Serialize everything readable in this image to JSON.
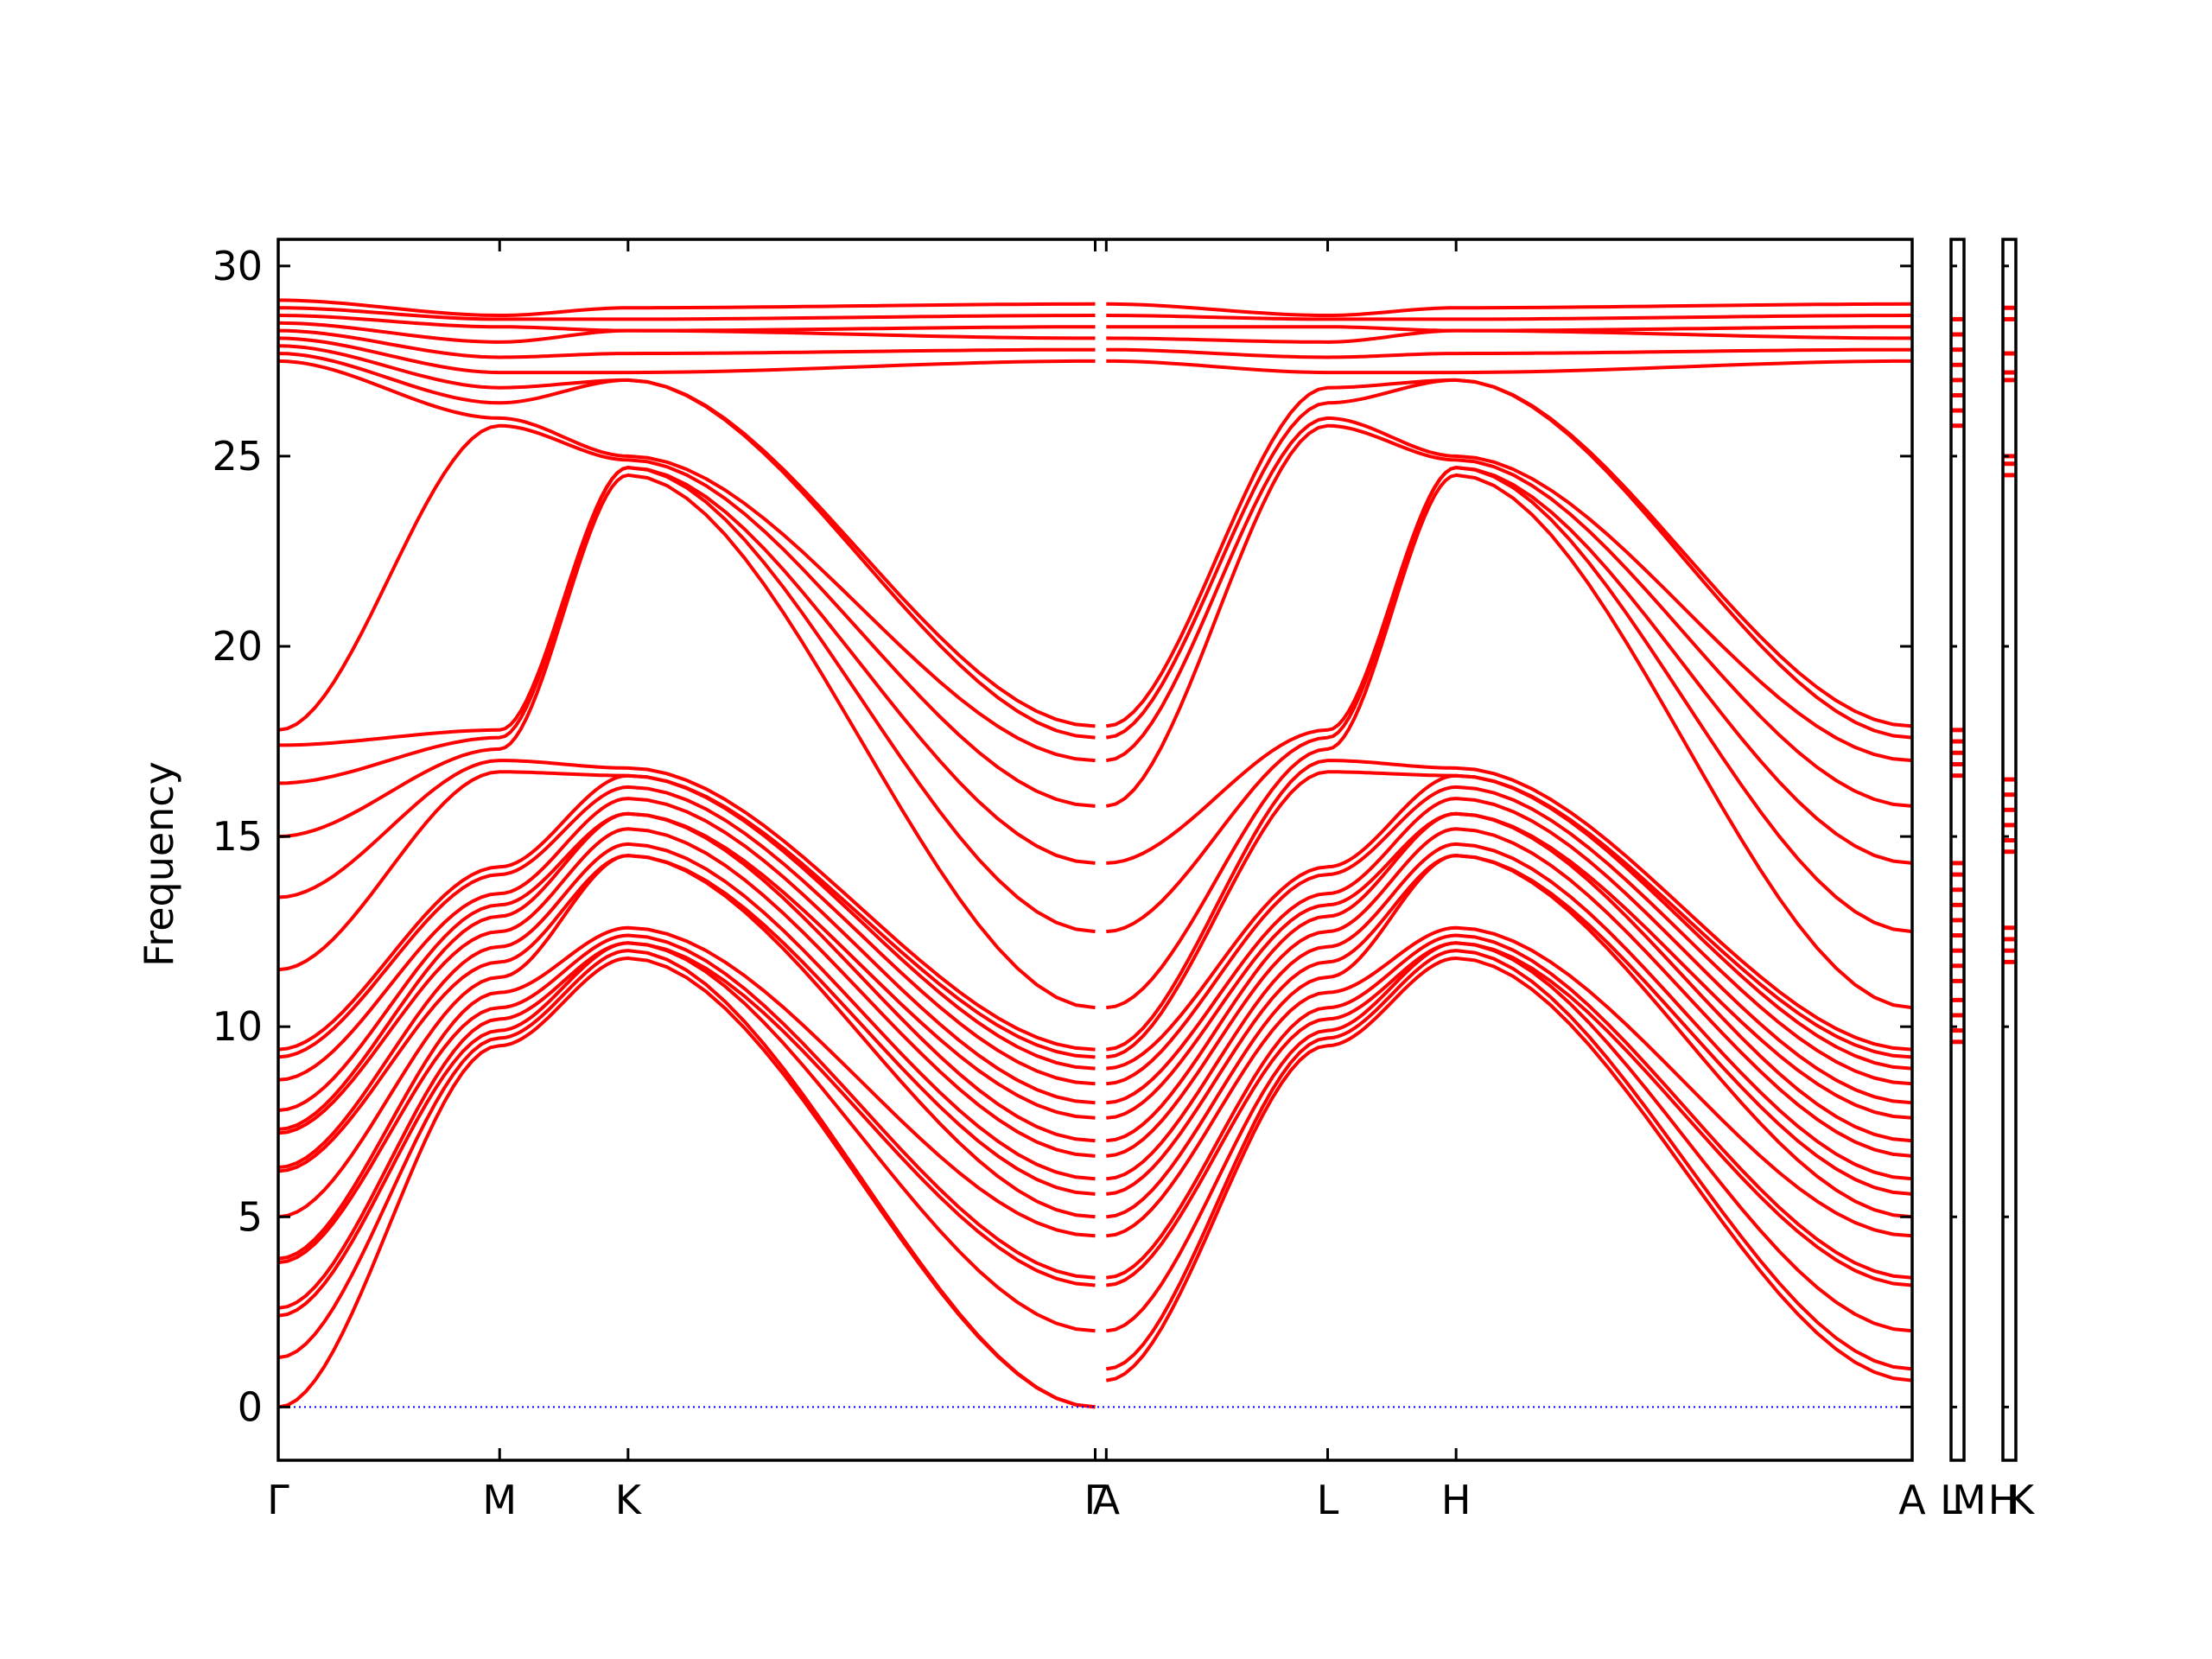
{
  "chart_data": {
    "type": "line",
    "title": "",
    "xlabel": "",
    "ylabel": "Frequency",
    "ylim": [
      -1.4,
      30.7
    ],
    "yticks": [
      0,
      5,
      10,
      15,
      20,
      25,
      30
    ],
    "grid": false,
    "legend": "none",
    "colors": {
      "bands": "#ff0000",
      "zero_line": "#0000ff",
      "axes": "#000000"
    },
    "path_labels": [
      "Γ",
      "M",
      "K",
      "Γ",
      "A",
      "L",
      "H",
      "A",
      "L",
      "M",
      "H",
      "K"
    ],
    "segments": [
      {
        "label": "Γ–M–K–Γ",
        "x_start": 0.0,
        "x_end": 3.69
      },
      {
        "label": "A–L–H–A",
        "x_start": 3.69,
        "x_end": 7.38
      }
    ],
    "high_symmetry_points": [
      {
        "label": "Γ",
        "x": 0.0
      },
      {
        "label": "M",
        "x": 1.0
      },
      {
        "label": "K",
        "x": 1.58
      },
      {
        "label": "Γ",
        "x": 3.69
      },
      {
        "label": "A",
        "x": 3.74
      },
      {
        "label": "L",
        "x": 4.74
      },
      {
        "label": "H",
        "x": 5.32
      },
      {
        "label": "A",
        "x": 7.38
      }
    ],
    "side_panels": [
      {
        "labels": [
          "L",
          "M"
        ],
        "flat_bands": [
          9.6,
          9.9,
          10.3,
          10.7,
          11.2,
          11.6,
          12.0,
          12.4,
          12.8,
          13.2,
          13.6,
          14.0,
          14.3,
          16.6,
          16.9,
          17.2,
          17.5,
          17.8,
          25.8,
          26.2,
          26.6,
          27.0,
          27.4,
          27.8,
          28.2,
          28.6
        ]
      },
      {
        "labels": [
          "H",
          "K"
        ],
        "flat_bands": [
          11.7,
          12.0,
          12.3,
          12.6,
          14.6,
          14.9,
          15.3,
          15.7,
          16.1,
          16.5,
          24.5,
          24.8,
          25.0,
          27.0,
          27.2,
          27.7,
          28.6,
          28.9
        ]
      }
    ],
    "series": [
      {
        "values_at_gamma": [
          0.0,
          1.3,
          2.4,
          2.6,
          3.8,
          3.9,
          5.0,
          6.2,
          6.3,
          7.2,
          7.3,
          7.8,
          8.6,
          9.2,
          9.4,
          11.5,
          13.4,
          15.0,
          16.4,
          17.4,
          17.8,
          27.5,
          27.7,
          27.9,
          28.1,
          28.3,
          28.5,
          28.7,
          28.9,
          29.1
        ]
      },
      {
        "values_at_M": [
          9.5,
          9.7,
          9.9,
          10.2,
          10.5,
          10.9,
          11.3,
          11.7,
          12.1,
          12.5,
          12.9,
          13.2,
          13.5,
          14.0,
          14.2,
          16.7,
          17.0,
          17.3,
          17.6,
          17.8,
          25.8,
          26.0,
          26.4,
          26.8,
          27.2,
          27.6,
          28.0,
          28.4,
          28.6,
          28.7
        ]
      },
      {
        "values_at_K": [
          11.8,
          12.0,
          12.2,
          12.4,
          12.6,
          14.5,
          14.8,
          15.2,
          15.6,
          16.0,
          16.3,
          16.6,
          16.8,
          24.5,
          24.7,
          24.9,
          25.0,
          27.0,
          27.2,
          27.7,
          28.3,
          28.6,
          28.9
        ]
      },
      {
        "values_at_A": [
          0.7,
          1.0,
          2.0,
          3.2,
          3.4,
          4.5,
          5.0,
          5.6,
          6.0,
          6.6,
          7.0,
          7.6,
          8.0,
          8.5,
          8.9,
          9.2,
          9.4,
          10.5,
          12.5,
          14.3,
          15.8,
          17.0,
          17.6,
          17.9,
          27.5,
          27.8,
          28.1,
          28.4,
          28.7,
          29.0
        ]
      }
    ]
  }
}
